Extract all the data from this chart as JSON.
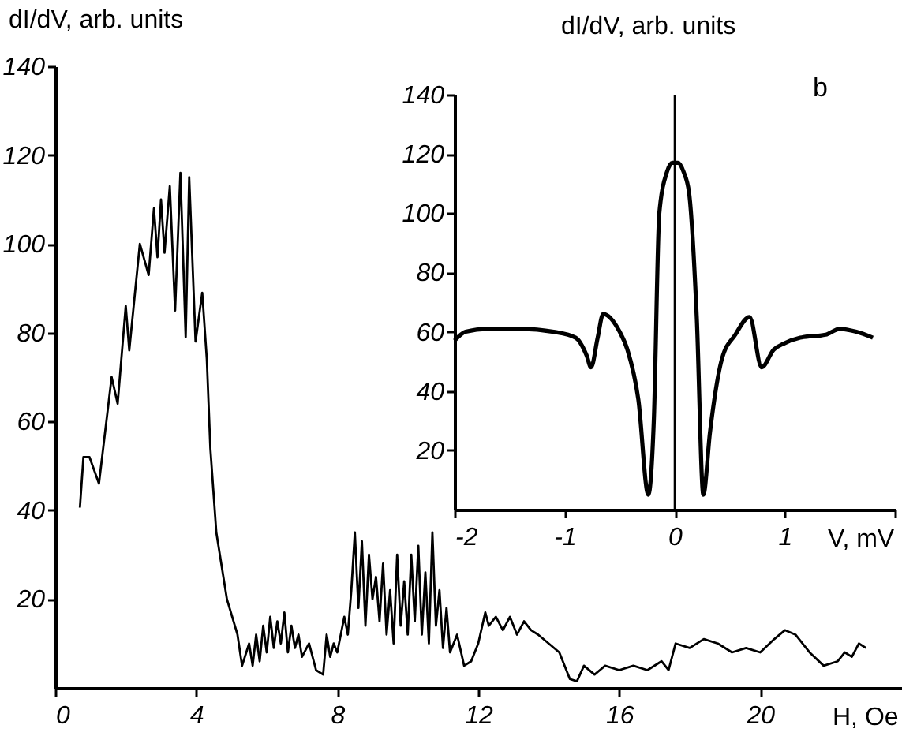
{
  "chart_data": [
    {
      "type": "line",
      "xlabel": "H, Oe",
      "ylabel": "dI/dV, arb. units",
      "xlim": [
        0,
        24
      ],
      "ylim": [
        0,
        140
      ],
      "xticks": [
        0,
        4,
        8,
        12,
        16,
        20
      ],
      "yticks": [
        20,
        40,
        60,
        80,
        100,
        120,
        140
      ],
      "x": [
        0.7,
        0.8,
        0.97,
        1.24,
        1.6,
        1.77,
        2.0,
        2.1,
        2.4,
        2.65,
        2.8,
        2.9,
        3.0,
        3.1,
        3.25,
        3.4,
        3.55,
        3.7,
        3.8,
        3.98,
        4.17,
        4.3,
        4.4,
        4.57,
        4.87,
        5.17,
        5.3,
        5.5,
        5.6,
        5.7,
        5.8,
        5.9,
        6.0,
        6.1,
        6.2,
        6.3,
        6.4,
        6.5,
        6.6,
        6.7,
        6.8,
        6.9,
        7.0,
        7.2,
        7.4,
        7.6,
        7.7,
        7.8,
        7.9,
        8.0,
        8.2,
        8.3,
        8.4,
        8.5,
        8.6,
        8.7,
        8.8,
        8.9,
        9.0,
        9.1,
        9.2,
        9.3,
        9.4,
        9.5,
        9.6,
        9.7,
        9.8,
        9.9,
        10.0,
        10.1,
        10.2,
        10.3,
        10.4,
        10.5,
        10.6,
        10.7,
        10.8,
        10.9,
        11.0,
        11.1,
        11.2,
        11.4,
        11.6,
        11.8,
        12.0,
        12.2,
        12.3,
        12.5,
        12.7,
        12.9,
        13.1,
        13.3,
        13.5,
        13.7,
        14.0,
        14.3,
        14.5,
        14.6,
        14.8,
        15.0,
        15.3,
        15.6,
        16.0,
        16.4,
        16.8,
        17.2,
        17.4,
        17.6,
        18.0,
        18.4,
        18.8,
        19.2,
        19.6,
        20.0,
        20.4,
        20.7,
        21.0,
        21.4,
        21.8,
        22.2,
        22.4,
        22.6,
        22.8,
        23.0
      ],
      "series": [
        {
          "color": "#000000",
          "values": [
            40.6,
            52,
            52,
            46,
            70,
            64,
            86,
            76,
            100,
            93,
            108,
            97,
            110,
            98,
            113,
            85,
            116,
            79,
            115,
            78,
            89,
            74,
            54,
            35,
            20,
            12,
            5,
            10,
            5,
            12,
            6,
            14,
            8,
            16,
            9,
            15,
            10,
            17,
            8,
            14,
            9,
            12,
            7,
            10,
            4,
            3,
            12,
            7,
            10,
            8,
            16,
            12,
            22,
            35,
            18,
            33,
            14,
            30,
            20,
            25,
            15,
            28,
            12,
            22,
            10,
            30,
            14,
            24,
            12,
            30,
            15,
            32,
            12,
            26,
            10,
            35,
            14,
            22,
            9,
            18,
            8,
            12,
            5,
            6,
            10,
            17,
            14,
            16,
            13,
            16,
            12,
            15,
            13,
            12,
            10,
            8,
            4,
            2,
            1.5,
            5,
            3,
            5,
            4,
            5,
            4,
            6,
            4,
            10,
            9,
            11,
            10,
            8,
            9,
            8,
            11,
            13,
            12,
            8,
            5,
            6,
            8,
            7,
            10,
            9
          ]
        }
      ]
    },
    {
      "type": "line",
      "xlabel": "V, mV",
      "ylabel": "dI/dV, arb. units",
      "annotations": [
        "b"
      ],
      "xlim": [
        -2,
        2
      ],
      "ylim": [
        0,
        140
      ],
      "xticks": [
        -2,
        -1,
        0,
        1,
        {
          "value": 2,
          "label": null
        }
      ],
      "yticks": [
        20,
        40,
        60,
        80,
        100,
        120,
        140
      ],
      "ref_lines": [
        {
          "axis": "x",
          "value": 0
        }
      ],
      "x": [
        -2,
        -1.9,
        -1.7,
        -1.4,
        -1.1,
        -0.9,
        -0.8,
        -0.76,
        -0.7,
        -0.65,
        -0.5,
        -0.43,
        -0.33,
        -0.24,
        -0.19,
        -0.14,
        -0.07,
        -0.02,
        0.03,
        0.08,
        0.13,
        0.2,
        0.26,
        0.32,
        0.43,
        0.55,
        0.68,
        0.79,
        0.9,
        0.99,
        1.14,
        1.37,
        1.5,
        1.65,
        1.8
      ],
      "series": [
        {
          "color": "#000000",
          "values": [
            57,
            60,
            61,
            61,
            60,
            58,
            52,
            48,
            58,
            66,
            60,
            54,
            37,
            5,
            30,
            100,
            114,
            117,
            117,
            114,
            107,
            65,
            5,
            26,
            51,
            59,
            65,
            48,
            54,
            56,
            58,
            59,
            61,
            60,
            58
          ]
        }
      ]
    }
  ]
}
